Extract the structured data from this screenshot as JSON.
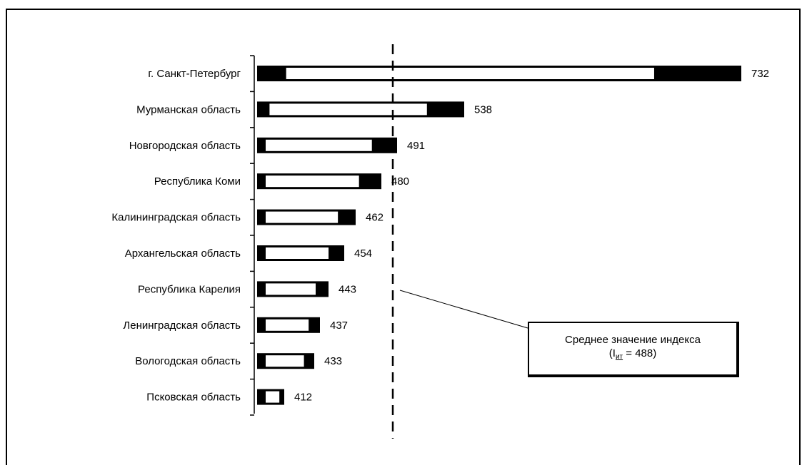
{
  "chart_data": {
    "type": "bar",
    "orientation": "horizontal",
    "categories": [
      "г. Санкт-Петербург",
      "Мурманская область",
      "Новгородская область",
      "Республика Коми",
      "Калининградская область",
      "Архангельская область",
      "Республика Карелия",
      "Ленинградская область",
      "Вологодская область",
      "Псковская область"
    ],
    "values": [
      732,
      538,
      491,
      480,
      462,
      454,
      443,
      437,
      433,
      412
    ],
    "value_labels": [
      "732",
      "538",
      "491",
      "480",
      "462",
      "454",
      "443",
      "437",
      "433",
      "412"
    ],
    "reference_line": {
      "value": 488
    },
    "annotation": {
      "line1": "Среднее значение индекса",
      "prefix": "(I",
      "subscript": "ит",
      "suffix": " = 488)"
    }
  }
}
